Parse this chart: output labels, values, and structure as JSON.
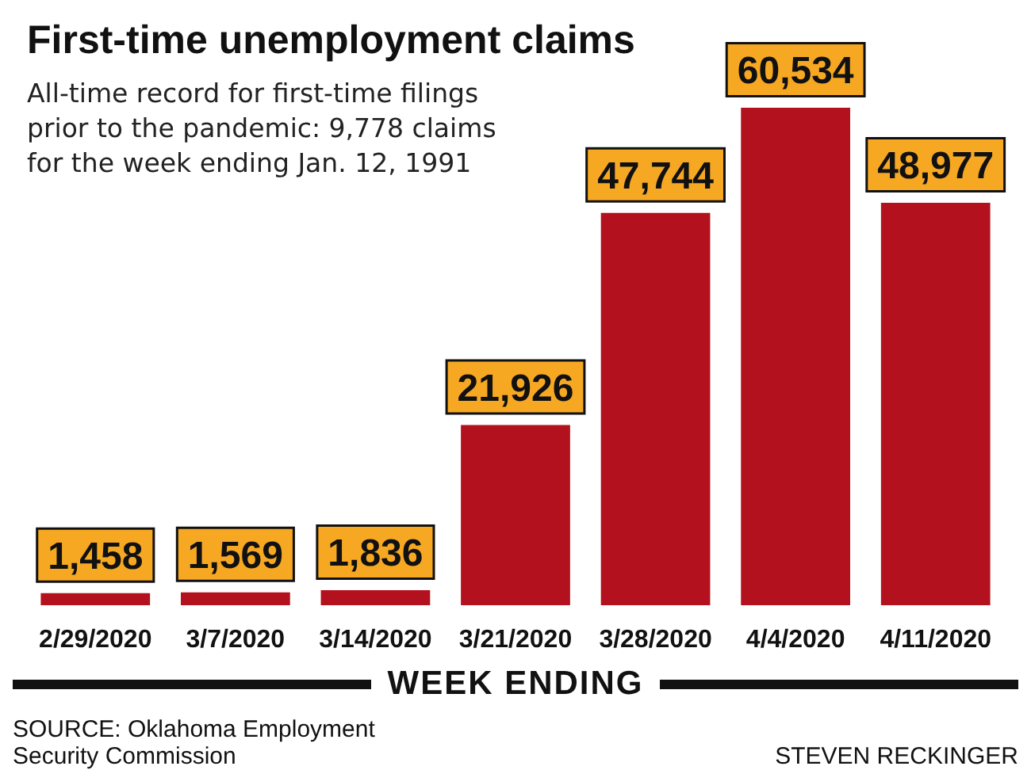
{
  "chart_data": {
    "type": "bar",
    "title": "First-time unemployment claims",
    "subtitle": "All-time record for first-time filings prior to the pandemic: 9,778 claims for the week ending Jan. 12, 1991",
    "xlabel": "WEEK ENDING",
    "categories": [
      "2/29/2020",
      "3/7/2020",
      "3/14/2020",
      "3/21/2020",
      "3/28/2020",
      "4/4/2020",
      "4/11/2020"
    ],
    "values": [
      1458,
      1569,
      1836,
      21926,
      47744,
      60534,
      48977
    ],
    "value_labels": [
      "1,458",
      "1,569",
      "1,836",
      "21,926",
      "47,744",
      "60,534",
      "48,977"
    ],
    "color": "#b3111d",
    "annotations": [
      "SOURCE: Oklahoma Employment Security Commission",
      "STEVEN RECKINGER"
    ]
  }
}
